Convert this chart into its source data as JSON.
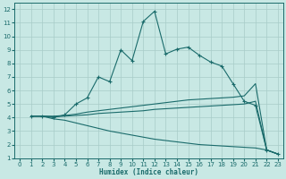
{
  "xlabel": "Humidex (Indice chaleur)",
  "bg_color": "#c8e8e4",
  "line_color": "#1a6b6b",
  "grid_color": "#a8ccc8",
  "xlim": [
    -0.5,
    23.5
  ],
  "ylim": [
    1,
    12.5
  ],
  "xticks": [
    0,
    1,
    2,
    3,
    4,
    5,
    6,
    7,
    8,
    9,
    10,
    11,
    12,
    13,
    14,
    15,
    16,
    17,
    18,
    19,
    20,
    21,
    22,
    23
  ],
  "yticks": [
    1,
    2,
    3,
    4,
    5,
    6,
    7,
    8,
    9,
    10,
    11,
    12
  ],
  "lines": [
    {
      "x": [
        1,
        2,
        3,
        4,
        5,
        6,
        7,
        8,
        9,
        10,
        11,
        12,
        13,
        14,
        15,
        16,
        17,
        18,
        19,
        20,
        21,
        22,
        23
      ],
      "y": [
        4.1,
        4.1,
        4.0,
        4.2,
        5.0,
        5.45,
        7.0,
        6.65,
        9.0,
        8.2,
        11.1,
        11.85,
        8.7,
        9.05,
        9.2,
        8.6,
        8.1,
        7.8,
        6.5,
        5.2,
        4.9,
        1.6,
        1.3
      ],
      "marker": true
    },
    {
      "x": [
        1,
        2,
        3,
        4,
        5,
        6,
        7,
        8,
        9,
        10,
        11,
        12,
        13,
        14,
        15,
        16,
        17,
        18,
        19,
        20,
        21,
        22,
        23
      ],
      "y": [
        4.1,
        4.1,
        4.1,
        4.15,
        4.25,
        4.4,
        4.5,
        4.6,
        4.7,
        4.8,
        4.9,
        5.0,
        5.1,
        5.2,
        5.3,
        5.35,
        5.4,
        5.45,
        5.5,
        5.6,
        6.5,
        1.6,
        1.3
      ],
      "marker": false
    },
    {
      "x": [
        1,
        2,
        3,
        4,
        5,
        6,
        7,
        8,
        9,
        10,
        11,
        12,
        13,
        14,
        15,
        16,
        17,
        18,
        19,
        20,
        21,
        22,
        23
      ],
      "y": [
        4.1,
        4.1,
        4.05,
        4.1,
        4.15,
        4.2,
        4.3,
        4.35,
        4.4,
        4.45,
        4.5,
        4.6,
        4.65,
        4.7,
        4.75,
        4.8,
        4.85,
        4.9,
        4.95,
        5.0,
        5.2,
        1.6,
        1.3
      ],
      "marker": false
    },
    {
      "x": [
        1,
        2,
        3,
        4,
        5,
        6,
        7,
        8,
        9,
        10,
        11,
        12,
        13,
        14,
        15,
        16,
        17,
        18,
        19,
        20,
        21,
        22,
        23
      ],
      "y": [
        4.1,
        4.1,
        3.9,
        3.8,
        3.6,
        3.4,
        3.2,
        3.0,
        2.85,
        2.7,
        2.55,
        2.4,
        2.3,
        2.2,
        2.1,
        2.0,
        1.95,
        1.9,
        1.85,
        1.8,
        1.75,
        1.6,
        1.3
      ],
      "marker": false
    }
  ]
}
